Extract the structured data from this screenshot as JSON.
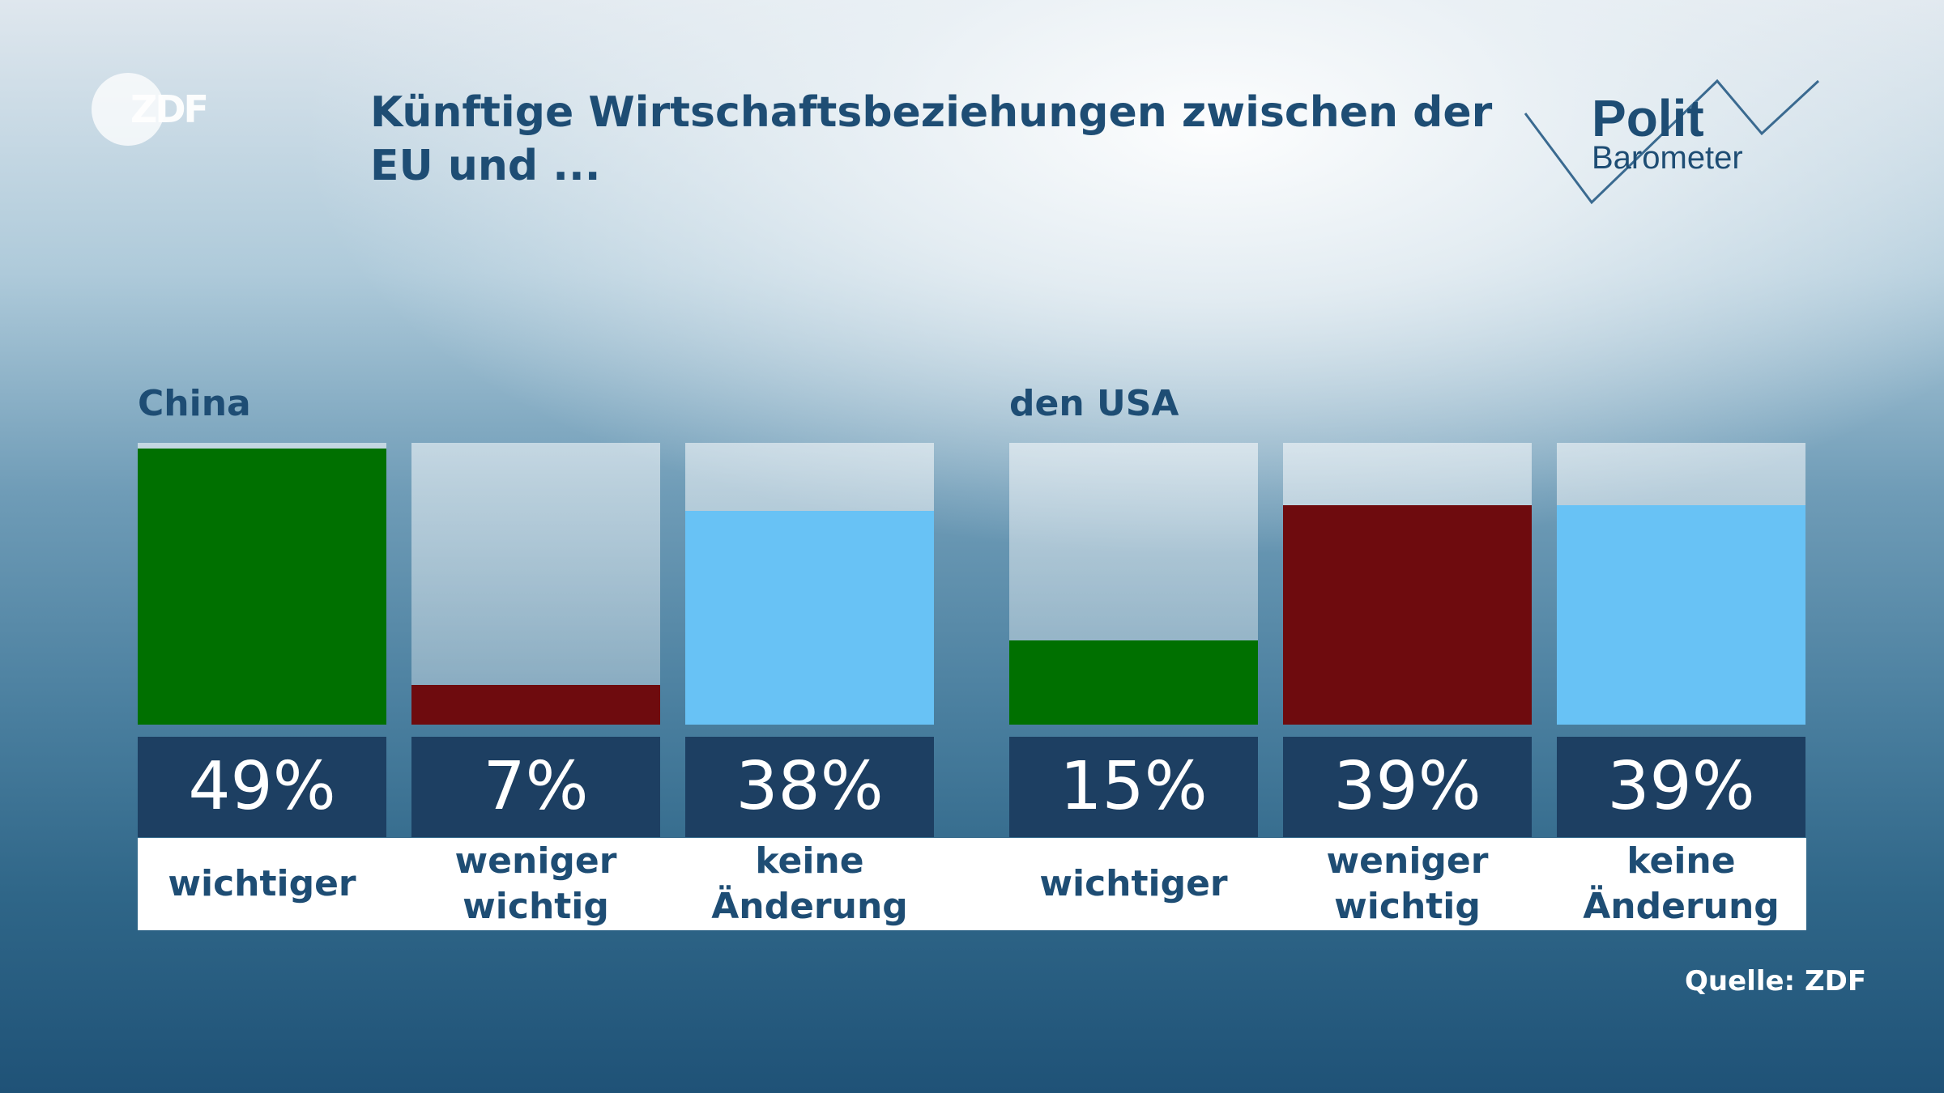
{
  "brand": {
    "logo_text": "ZDF",
    "polit_line1": "Polit",
    "polit_line2": "Barometer"
  },
  "title": "Künftige Wirtschaftsbeziehungen zwischen der EU und ...",
  "source": "Quelle: ZDF",
  "colors": {
    "wichtiger": "#007000",
    "weniger_wichtig": "#6e0b0e",
    "keine_aenderung": "#68c2f5",
    "value_box": "#1d3f62"
  },
  "chart_data": {
    "type": "bar",
    "ylim": [
      0,
      50
    ],
    "groups": [
      {
        "name": "China",
        "categories": [
          "wichtiger",
          "weniger wichtig",
          "keine Änderung"
        ],
        "values": [
          49,
          7,
          38
        ],
        "value_labels": [
          "49%",
          "7%",
          "38%"
        ]
      },
      {
        "name": "den USA",
        "categories": [
          "wichtiger",
          "weniger wichtig",
          "keine Änderung"
        ],
        "values": [
          15,
          39,
          39
        ],
        "value_labels": [
          "15%",
          "39%",
          "39%"
        ]
      }
    ]
  }
}
